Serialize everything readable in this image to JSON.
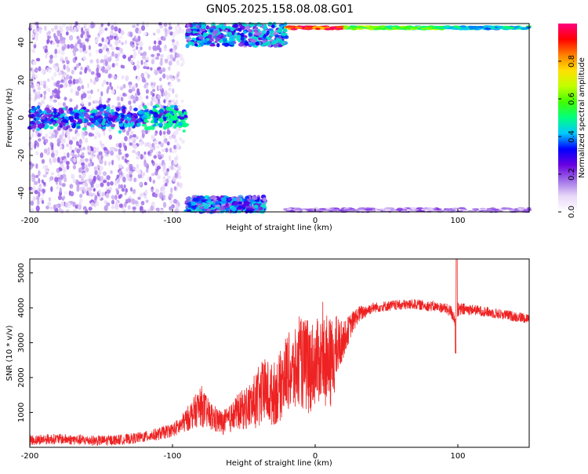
{
  "title": "GN05.2025.158.08.08.G01",
  "chart_data": [
    {
      "type": "heatmap",
      "xlabel": "Height of straight line (km)",
      "ylabel": "Frequency (Hz)",
      "xlim": [
        -200,
        150
      ],
      "ylim": [
        -50,
        50
      ],
      "xticks": [
        "-200",
        "-100",
        "0",
        "100"
      ],
      "xtick_values": [
        -200,
        -100,
        0,
        100
      ],
      "yticks": [
        "40",
        "20",
        "0",
        "-20",
        "-40"
      ],
      "ytick_values": [
        40,
        20,
        0,
        -20,
        -40
      ],
      "colorbar": {
        "label": "Normalized spectral amplitude",
        "range": [
          0,
          1
        ],
        "ticks": [
          "0.0",
          "0.2",
          "0.4",
          "0.6",
          "0.8"
        ],
        "tick_values": [
          0.0,
          0.2,
          0.4,
          0.6,
          0.8
        ],
        "colors": [
          "#ffffff",
          "#e8d8f8",
          "#a070e8",
          "#6a00e0",
          "#0000ff",
          "#00c8ff",
          "#00ff80",
          "#40ff00",
          "#c0ff00",
          "#ffe000",
          "#ff8000",
          "#ff0000",
          "#ff0080"
        ]
      },
      "features": [
        {
          "region": "diffuse noise",
          "x": [
            -200,
            -90
          ],
          "y": [
            -50,
            50
          ],
          "amplitude": 0.1
        },
        {
          "region": "band near 0 Hz",
          "x": [
            -200,
            -90
          ],
          "y": [
            -6,
            6
          ],
          "amplitude": 0.3
        },
        {
          "region": "upper cluster",
          "x": [
            -90,
            -20
          ],
          "y": [
            38,
            50
          ],
          "amplitude": 0.35
        },
        {
          "region": "upper line",
          "x": [
            -20,
            150
          ],
          "y": [
            47,
            48.5
          ],
          "amplitude": 0.8
        },
        {
          "region": "lower cluster",
          "x": [
            -90,
            -35
          ],
          "y": [
            -50,
            -42
          ],
          "amplitude": 0.3
        },
        {
          "region": "lower line",
          "x": [
            -20,
            150
          ],
          "y": [
            -50,
            -48
          ],
          "amplitude": 0.15
        }
      ]
    },
    {
      "type": "line",
      "xlabel": "Height of straight line (km)",
      "ylabel": "SNR (10 * v/v)",
      "xlim": [
        -200,
        150
      ],
      "ylim": [
        0,
        5400
      ],
      "xticks": [
        "-200",
        "-100",
        "0",
        "100"
      ],
      "xtick_values": [
        -200,
        -100,
        0,
        100
      ],
      "yticks": [
        "5000",
        "4000",
        "3000",
        "2000",
        "1000"
      ],
      "ytick_values": [
        5000,
        4000,
        3000,
        2000,
        1000
      ],
      "series": [
        {
          "color": "#ee2222",
          "x": [
            -200,
            -190,
            -180,
            -170,
            -160,
            -150,
            -140,
            -130,
            -120,
            -110,
            -100,
            -95,
            -90,
            -85,
            -80,
            -75,
            -70,
            -65,
            -60,
            -55,
            -50,
            -45,
            -40,
            -35,
            -30,
            -25,
            -20,
            -15,
            -10,
            -5,
            0,
            5,
            10,
            15,
            20,
            25,
            30,
            40,
            50,
            60,
            70,
            80,
            90,
            95,
            98,
            100,
            102,
            110,
            120,
            130,
            140,
            150
          ],
          "y": [
            200,
            230,
            240,
            220,
            200,
            190,
            210,
            240,
            300,
            380,
            500,
            600,
            800,
            1000,
            1200,
            950,
            800,
            700,
            800,
            1000,
            1100,
            1200,
            1400,
            1600,
            1500,
            1700,
            2200,
            2100,
            2400,
            2300,
            2400,
            2600,
            2300,
            2800,
            3100,
            3500,
            3800,
            4000,
            4050,
            4080,
            4100,
            4050,
            4000,
            3900,
            3700,
            3900,
            3950,
            3950,
            3880,
            3820,
            3750,
            3700
          ],
          "noise_amplitude": [
            150,
            150,
            150,
            150,
            150,
            150,
            150,
            150,
            160,
            180,
            200,
            250,
            350,
            450,
            600,
            450,
            400,
            350,
            400,
            500,
            600,
            700,
            900,
            1000,
            900,
            1000,
            1100,
            1200,
            1300,
            1400,
            1200,
            1300,
            1400,
            1000,
            500,
            350,
            250,
            150,
            150,
            150,
            150,
            150,
            150,
            180,
            250,
            250,
            200,
            150,
            150,
            150,
            150,
            150
          ]
        }
      ]
    }
  ]
}
